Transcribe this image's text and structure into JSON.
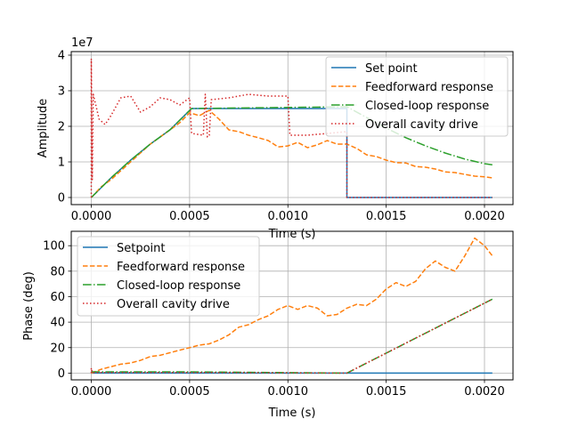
{
  "chart_data": [
    {
      "type": "line",
      "ylabel": "Amplitude",
      "xlabel": "Time (s)",
      "y_scale_label": "1e7",
      "xlim": [
        -0.000102,
        0.002145
      ],
      "ylim": [
        -0.2,
        4.1
      ],
      "xticks": [
        0,
        0.0005,
        0.001,
        0.0015,
        0.002
      ],
      "xtick_labels": [
        "0.0000",
        "0.0005",
        "0.0010",
        "0.0015",
        "0.0020"
      ],
      "yticks": [
        0,
        1,
        2,
        3,
        4
      ],
      "ytick_labels": [
        "0",
        "1",
        "2",
        "3",
        "4"
      ],
      "grid": true,
      "legend_position": "upper-right",
      "series": [
        {
          "name": "Set point",
          "color": "#1f77b4",
          "dash": "solid",
          "points": [
            [
              0,
              0
            ],
            [
              0.0001,
              0.55
            ],
            [
              0.0002,
              1.05
            ],
            [
              0.0003,
              1.5
            ],
            [
              0.0004,
              1.9
            ],
            [
              0.00051,
              2.5
            ],
            [
              0.0013,
              2.5
            ],
            [
              0.0013,
              0
            ],
            [
              0.00204,
              0
            ]
          ]
        },
        {
          "name": "Feedforward response",
          "color": "#ff7f0e",
          "dash": "dashed",
          "points": [
            [
              0,
              0
            ],
            [
              5e-05,
              0.3
            ],
            [
              0.0001,
              0.5
            ],
            [
              0.00015,
              0.75
            ],
            [
              0.0002,
              1.0
            ],
            [
              0.00025,
              1.25
            ],
            [
              0.0003,
              1.5
            ],
            [
              0.00035,
              1.7
            ],
            [
              0.0004,
              1.9
            ],
            [
              0.00045,
              2.1
            ],
            [
              0.0005,
              2.38
            ],
            [
              0.00055,
              2.3
            ],
            [
              0.0006,
              2.45
            ],
            [
              0.00065,
              2.2
            ],
            [
              0.0007,
              1.9
            ],
            [
              0.00075,
              1.85
            ],
            [
              0.0008,
              1.75
            ],
            [
              0.00085,
              1.68
            ],
            [
              0.0009,
              1.6
            ],
            [
              0.00095,
              1.42
            ],
            [
              0.001,
              1.45
            ],
            [
              0.00105,
              1.55
            ],
            [
              0.0011,
              1.4
            ],
            [
              0.00115,
              1.48
            ],
            [
              0.0012,
              1.6
            ],
            [
              0.00125,
              1.5
            ],
            [
              0.0013,
              1.5
            ],
            [
              0.00135,
              1.38
            ],
            [
              0.0014,
              1.2
            ],
            [
              0.00145,
              1.15
            ],
            [
              0.0015,
              1.05
            ],
            [
              0.00155,
              0.98
            ],
            [
              0.0016,
              0.97
            ],
            [
              0.00165,
              0.87
            ],
            [
              0.0017,
              0.85
            ],
            [
              0.00175,
              0.8
            ],
            [
              0.0018,
              0.72
            ],
            [
              0.00185,
              0.7
            ],
            [
              0.0019,
              0.65
            ],
            [
              0.00195,
              0.6
            ],
            [
              0.002,
              0.58
            ],
            [
              0.00204,
              0.55
            ]
          ]
        },
        {
          "name": "Closed-loop response",
          "color": "#2ca02c",
          "dash": "dashdot",
          "points": [
            [
              0,
              0
            ],
            [
              0.0001,
              0.55
            ],
            [
              0.0002,
              1.05
            ],
            [
              0.0003,
              1.5
            ],
            [
              0.0004,
              1.9
            ],
            [
              0.00051,
              2.5
            ],
            [
              0.0013,
              2.55
            ],
            [
              0.0014,
              2.25
            ],
            [
              0.0015,
              1.95
            ],
            [
              0.0016,
              1.68
            ],
            [
              0.0017,
              1.45
            ],
            [
              0.0018,
              1.25
            ],
            [
              0.0019,
              1.08
            ],
            [
              0.002,
              0.95
            ],
            [
              0.00204,
              0.92
            ]
          ]
        },
        {
          "name": "Overall cavity drive",
          "color": "#d62728",
          "dash": "dotted",
          "points": [
            [
              0,
              0
            ],
            [
              0,
              3.9
            ],
            [
              5e-06,
              0.5
            ],
            [
              1e-05,
              2.9
            ],
            [
              4e-05,
              2.2
            ],
            [
              7e-05,
              2.05
            ],
            [
              0.0001,
              2.3
            ],
            [
              0.00015,
              2.8
            ],
            [
              0.0002,
              2.85
            ],
            [
              0.00025,
              2.4
            ],
            [
              0.0003,
              2.55
            ],
            [
              0.00035,
              2.8
            ],
            [
              0.0004,
              2.75
            ],
            [
              0.00045,
              2.6
            ],
            [
              0.0005,
              2.8
            ],
            [
              0.00051,
              1.8
            ],
            [
              0.00057,
              1.75
            ],
            [
              0.00058,
              2.9
            ],
            [
              0.00059,
              1.7
            ],
            [
              0.0006,
              1.75
            ],
            [
              0.00061,
              2.75
            ],
            [
              0.0007,
              2.8
            ],
            [
              0.0008,
              2.9
            ],
            [
              0.0009,
              2.85
            ],
            [
              0.001,
              2.85
            ],
            [
              0.00101,
              1.75
            ],
            [
              0.0011,
              1.75
            ],
            [
              0.0012,
              1.8
            ],
            [
              0.0013,
              1.85
            ],
            [
              0.0013,
              0
            ],
            [
              0.00204,
              0
            ]
          ]
        }
      ]
    },
    {
      "type": "line",
      "ylabel": "Phase (deg)",
      "xlabel": "Time (s)",
      "xlim": [
        -0.000102,
        0.002145
      ],
      "ylim": [
        -5.3,
        111.3
      ],
      "xticks": [
        0,
        0.0005,
        0.001,
        0.0015,
        0.002
      ],
      "xtick_labels": [
        "0.0000",
        "0.0005",
        "0.0010",
        "0.0015",
        "0.0020"
      ],
      "yticks": [
        0,
        20,
        40,
        60,
        80,
        100
      ],
      "ytick_labels": [
        "0",
        "20",
        "40",
        "60",
        "80",
        "100"
      ],
      "grid": true,
      "legend_position": "upper-left",
      "series": [
        {
          "name": "Setpoint",
          "color": "#1f77b4",
          "dash": "solid",
          "points": [
            [
              0,
              0
            ],
            [
              0.00204,
              0
            ]
          ]
        },
        {
          "name": "Feedforward response",
          "color": "#ff7f0e",
          "dash": "dashed",
          "points": [
            [
              0,
              0
            ],
            [
              5e-05,
              3
            ],
            [
              0.0001,
              5
            ],
            [
              0.00015,
              7
            ],
            [
              0.0002,
              8
            ],
            [
              0.00025,
              10
            ],
            [
              0.0003,
              13
            ],
            [
              0.00035,
              14
            ],
            [
              0.0004,
              16
            ],
            [
              0.00045,
              18
            ],
            [
              0.0005,
              20
            ],
            [
              0.00055,
              22
            ],
            [
              0.0006,
              23
            ],
            [
              0.00065,
              26
            ],
            [
              0.0007,
              30
            ],
            [
              0.00075,
              36
            ],
            [
              0.0008,
              38
            ],
            [
              0.00085,
              42
            ],
            [
              0.0009,
              45
            ],
            [
              0.00095,
              50
            ],
            [
              0.001,
              53
            ],
            [
              0.00105,
              50
            ],
            [
              0.0011,
              53
            ],
            [
              0.00115,
              51
            ],
            [
              0.0012,
              45
            ],
            [
              0.00125,
              46
            ],
            [
              0.0013,
              51
            ],
            [
              0.00135,
              54
            ],
            [
              0.0014,
              53
            ],
            [
              0.00145,
              58
            ],
            [
              0.0015,
              66
            ],
            [
              0.00155,
              71
            ],
            [
              0.0016,
              68
            ],
            [
              0.00165,
              72
            ],
            [
              0.0017,
              82
            ],
            [
              0.00175,
              88
            ],
            [
              0.0018,
              83
            ],
            [
              0.00185,
              80
            ],
            [
              0.0019,
              92
            ],
            [
              0.00195,
              106
            ],
            [
              0.002,
              100
            ],
            [
              0.00204,
              92
            ]
          ]
        },
        {
          "name": "Closed-loop response",
          "color": "#2ca02c",
          "dash": "dashdot",
          "points": [
            [
              0,
              1
            ],
            [
              0.0005,
              1
            ],
            [
              0.0013,
              0
            ],
            [
              0.00204,
              58
            ]
          ]
        },
        {
          "name": "Overall cavity drive",
          "color": "#d62728",
          "dash": "dotted",
          "points": [
            [
              0,
              0
            ],
            [
              0,
              4
            ],
            [
              5e-06,
              0.5
            ],
            [
              0.0005,
              0.5
            ],
            [
              0.0013,
              0
            ],
            [
              0.00204,
              58
            ]
          ]
        }
      ]
    }
  ]
}
